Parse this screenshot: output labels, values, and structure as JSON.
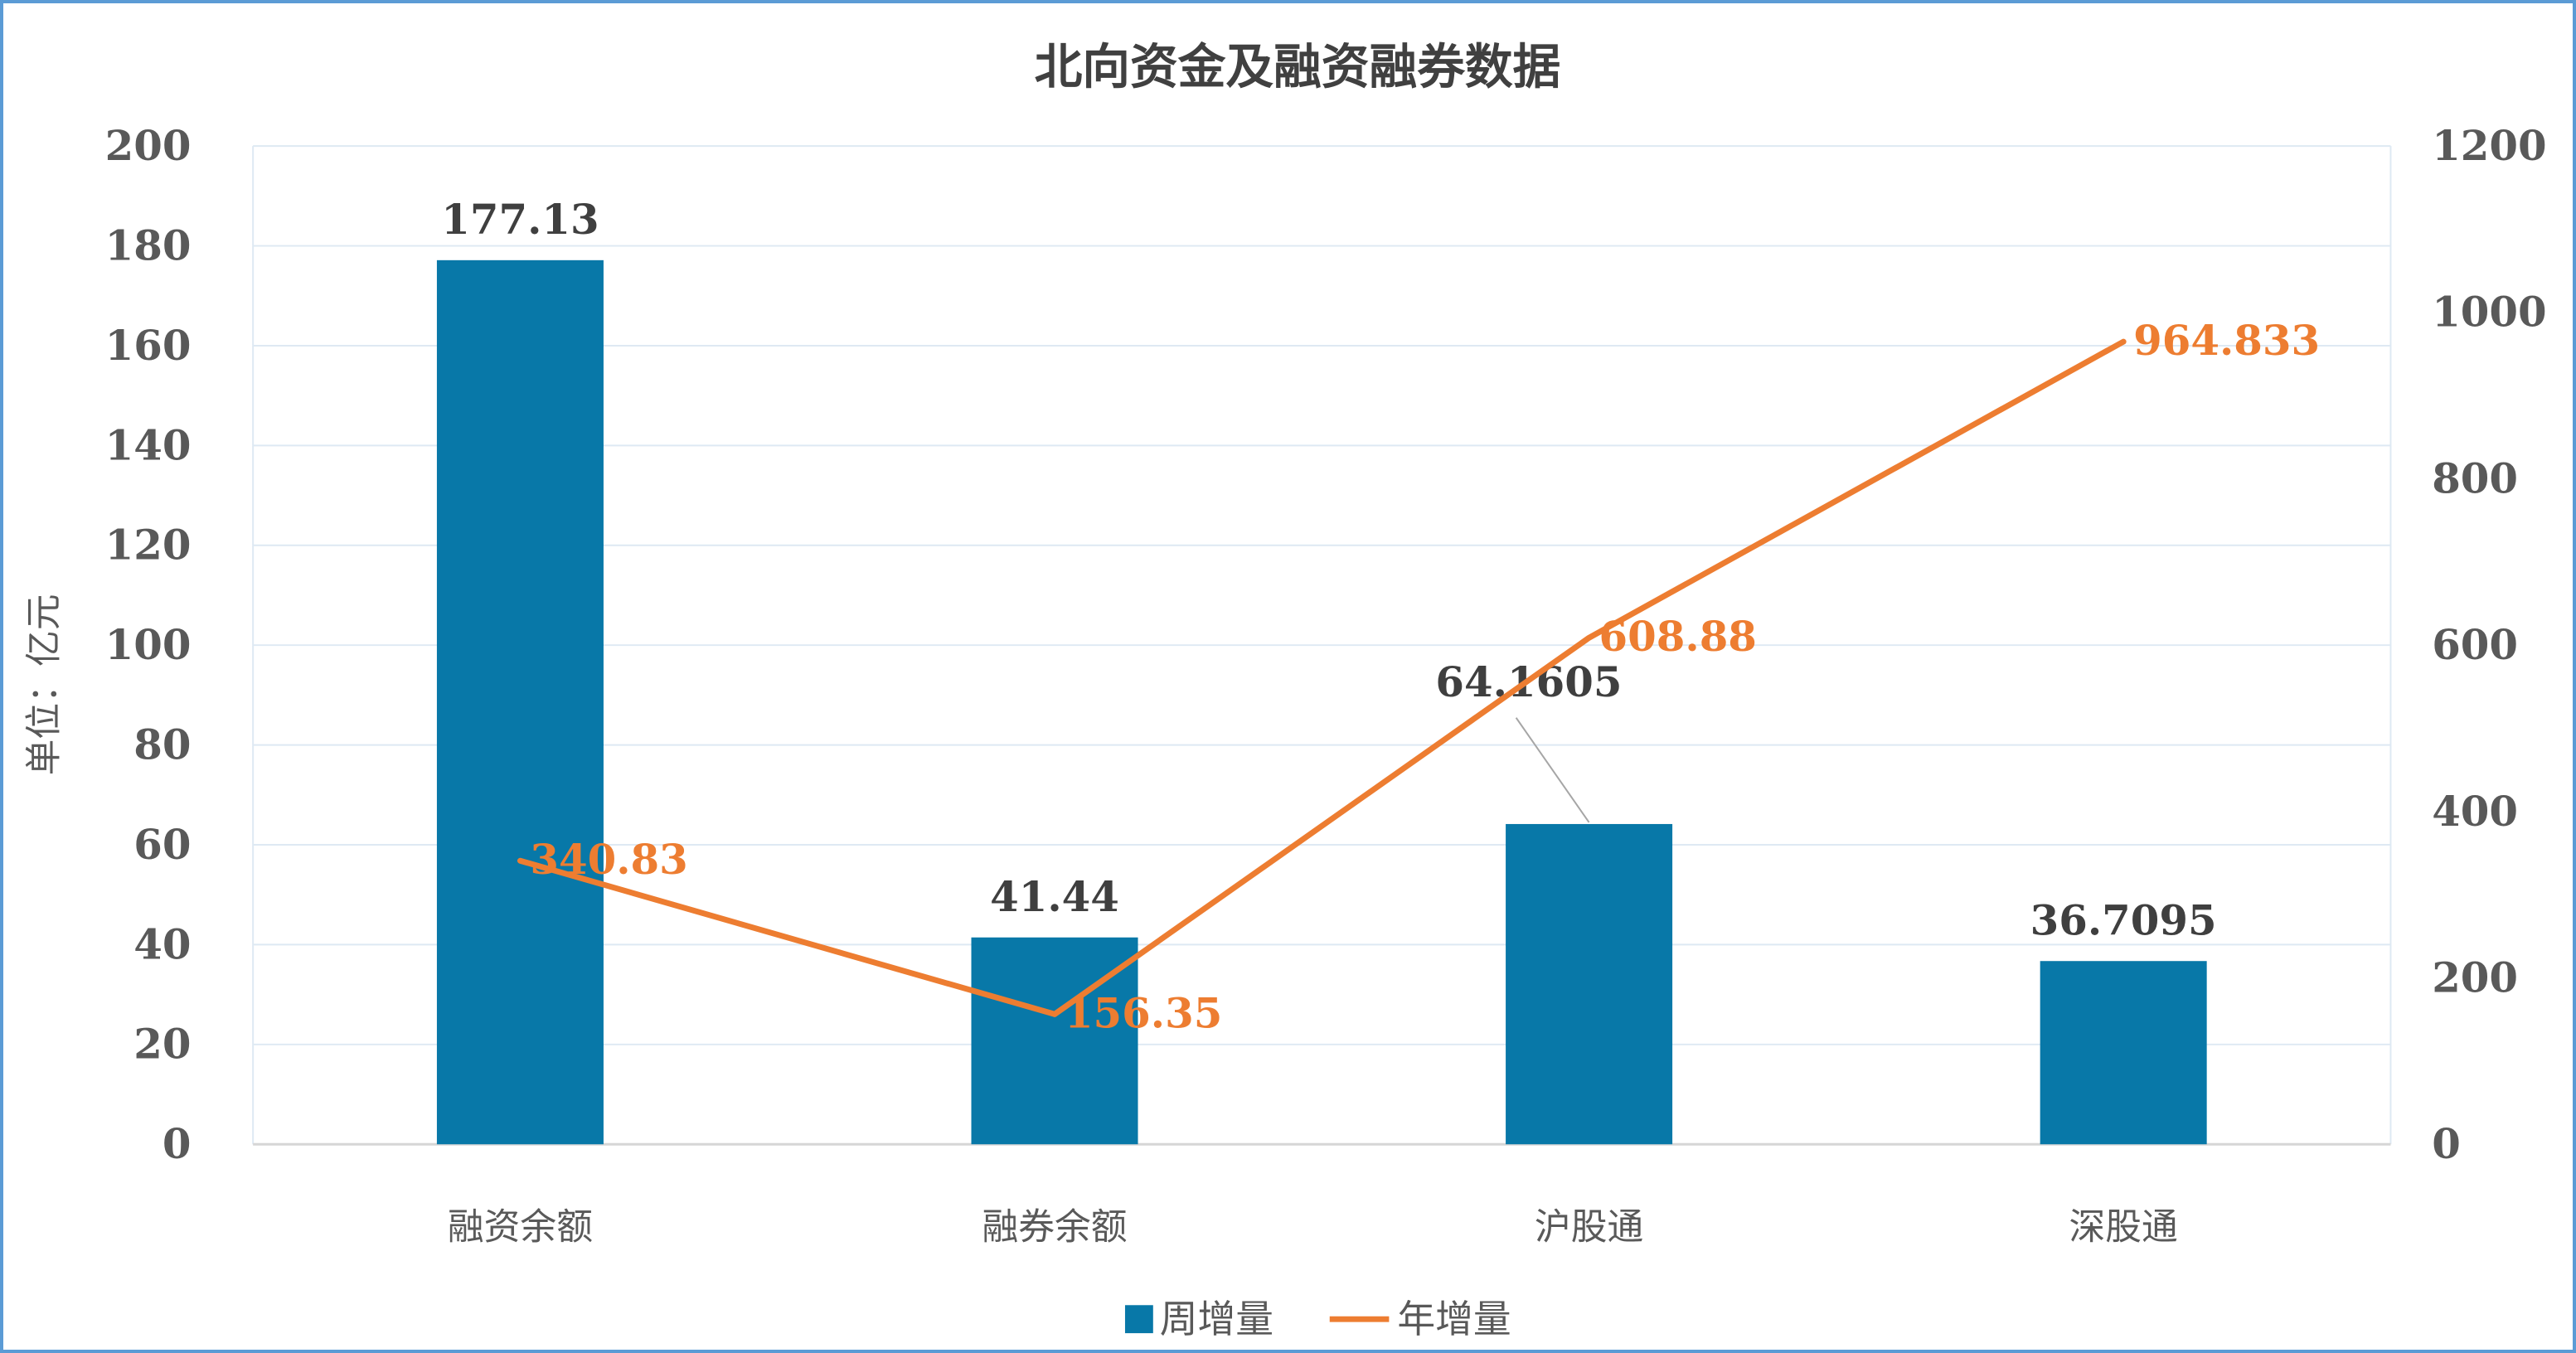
{
  "frame": {
    "border_color": "#5B9BD5",
    "background": "#ffffff"
  },
  "chart_data": {
    "type": "combo",
    "title": "北向资金及融资融券数据",
    "categories": [
      "融资余额",
      "融券余额",
      "沪股通",
      "深股通"
    ],
    "series": [
      {
        "name": "周增量",
        "type": "bar",
        "axis": "left",
        "color": "#0878A8",
        "values": [
          177.13,
          41.44,
          64.1605,
          36.7095
        ],
        "labels": [
          "177.13",
          "41.44",
          "64.1605",
          "36.7095"
        ],
        "label_color": "#3f3f3f"
      },
      {
        "name": "年增量",
        "type": "line",
        "axis": "right",
        "color": "#ED7D31",
        "values": [
          340.83,
          156.35,
          608.88,
          964.833
        ],
        "labels": [
          "340.83",
          "156.35",
          "608.88",
          "964.833"
        ],
        "label_color": "#ED7D31"
      }
    ],
    "left_axis": {
      "title": "单位：亿元",
      "min": 0,
      "max": 200,
      "step": 20,
      "ticks": [
        "0",
        "20",
        "40",
        "60",
        "80",
        "100",
        "120",
        "140",
        "160",
        "180",
        "200"
      ]
    },
    "right_axis": {
      "min": 0,
      "max": 1200,
      "step": 200,
      "ticks": [
        "0",
        "200",
        "400",
        "600",
        "800",
        "1000",
        "1200"
      ]
    },
    "legend": [
      {
        "label": "周增量",
        "marker": "square",
        "color": "#0878A8"
      },
      {
        "label": "年增量",
        "marker": "line",
        "color": "#ED7D31"
      }
    ],
    "legend_position": "bottom",
    "grid": true,
    "grid_color": "#dee9f3",
    "axis_line_color": "#d6d6d6",
    "leader_line_color": "#a6a6a6"
  }
}
